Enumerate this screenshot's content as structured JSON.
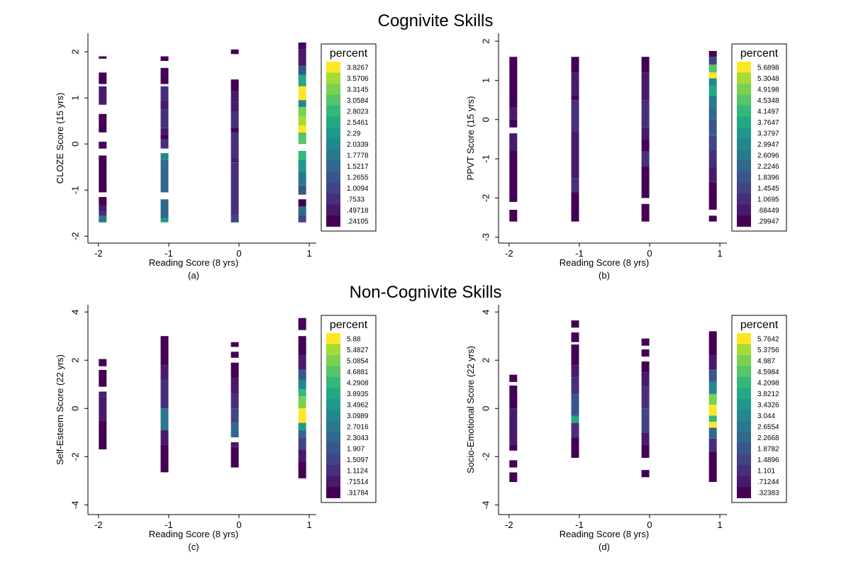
{
  "titles": {
    "top": "Cognivite Skills",
    "bottom": "Non-Cognivite Skills"
  },
  "chart_data": [
    {
      "type": "heatmap",
      "panel_label": "(a)",
      "xlabel": "Reading Score (8 yrs)",
      "ylabel": "CLOZE Score (15 yrs)",
      "xlim": [
        -2.15,
        1.1
      ],
      "ylim": [
        -2.15,
        2.4
      ],
      "xticks": [
        -2,
        -1,
        0,
        1
      ],
      "yticks": [
        -2,
        -1,
        0,
        1,
        2
      ],
      "legend_title": "percent",
      "legend_labels": [
        "3.8267",
        "3.5706",
        "3.3145",
        "3.0584",
        "2.8023",
        "2.5461",
        "2.29",
        "2.0339",
        "1.7778",
        "1.5217",
        "1.2655",
        "1.0094",
        ".7533",
        ".49718",
        ".24105"
      ],
      "columns": [
        {
          "x": -1.94,
          "cells": [
            [
              1.85,
              1.9,
              0
            ],
            [
              1.3,
              1.55,
              0
            ],
            [
              0.85,
              1.25,
              1
            ],
            [
              0.25,
              0.65,
              0
            ],
            [
              -0.1,
              0.05,
              0
            ],
            [
              -1.05,
              -0.25,
              0
            ],
            [
              -1.35,
              -1.15,
              0
            ],
            [
              -1.45,
              -1.35,
              1
            ],
            [
              -1.55,
              -1.45,
              2
            ],
            [
              -1.7,
              -1.55,
              6
            ]
          ]
        },
        {
          "x": -1.06,
          "cells": [
            [
              1.8,
              1.9,
              0
            ],
            [
              1.3,
              1.65,
              0
            ],
            [
              0.95,
              1.25,
              2
            ],
            [
              0.75,
              0.95,
              1
            ],
            [
              0.35,
              0.75,
              2
            ],
            [
              0.2,
              0.35,
              1
            ],
            [
              0.1,
              0.2,
              0
            ],
            [
              -0.1,
              0.1,
              2
            ],
            [
              -0.35,
              -0.2,
              7
            ],
            [
              -1.05,
              -0.35,
              5
            ],
            [
              -1.65,
              -1.2,
              5
            ],
            [
              -1.7,
              -1.6,
              8
            ]
          ]
        },
        {
          "x": -0.06,
          "cells": [
            [
              1.95,
              2.05,
              0
            ],
            [
              1.15,
              1.4,
              0
            ],
            [
              0.9,
              1.15,
              1
            ],
            [
              0.7,
              0.9,
              1
            ],
            [
              0.35,
              0.7,
              2
            ],
            [
              0.25,
              0.35,
              0
            ],
            [
              -0.3,
              0.25,
              2
            ],
            [
              -0.4,
              -0.3,
              1
            ],
            [
              -1.15,
              -0.4,
              2
            ],
            [
              -1.55,
              -1.15,
              2
            ],
            [
              -1.7,
              -1.55,
              3
            ]
          ]
        },
        {
          "x": 0.9,
          "cells": [
            [
              2.05,
              2.2,
              0
            ],
            [
              1.7,
              2.05,
              1
            ],
            [
              1.5,
              1.7,
              4
            ],
            [
              1.25,
              1.5,
              9
            ],
            [
              0.95,
              1.25,
              14
            ],
            [
              0.8,
              0.95,
              7
            ],
            [
              0.6,
              0.8,
              12
            ],
            [
              0.4,
              0.6,
              13
            ],
            [
              0.25,
              0.4,
              14
            ],
            [
              0.0,
              0.25,
              11
            ],
            [
              -0.35,
              -0.15,
              10
            ],
            [
              -0.6,
              -0.35,
              8
            ],
            [
              -0.9,
              -0.6,
              6
            ],
            [
              -1.1,
              -0.9,
              4
            ],
            [
              -1.35,
              -1.2,
              0
            ],
            [
              -1.55,
              -1.35,
              5
            ],
            [
              -1.7,
              -1.55,
              3
            ]
          ]
        }
      ]
    },
    {
      "type": "heatmap",
      "panel_label": "(b)",
      "xlabel": "Reading Score (8 yrs)",
      "ylabel": "PPVT Score (15 yrs)",
      "xlim": [
        -2.15,
        1.1
      ],
      "ylim": [
        -3.15,
        2.2
      ],
      "xticks": [
        -2,
        -1,
        0,
        1
      ],
      "yticks": [
        -3,
        -2,
        -1,
        0,
        1,
        2
      ],
      "legend_title": "percent",
      "legend_labels": [
        "5.6898",
        "5.3048",
        "4.9198",
        "4.5348",
        "4.1497",
        "3.7647",
        "3.3797",
        "2.9947",
        "2.6096",
        "2.2246",
        "1.8396",
        "1.4545",
        "1.0695",
        ".68449",
        ".29947"
      ],
      "columns": [
        {
          "x": -1.94,
          "cells": [
            [
              0.3,
              1.6,
              0
            ],
            [
              0.0,
              0.3,
              1
            ],
            [
              -0.2,
              0.0,
              0
            ],
            [
              -0.8,
              -0.35,
              1
            ],
            [
              -2.1,
              -0.8,
              0
            ],
            [
              -2.6,
              -2.3,
              0
            ]
          ]
        },
        {
          "x": -1.06,
          "cells": [
            [
              1.2,
              1.6,
              0
            ],
            [
              0.6,
              1.2,
              1
            ],
            [
              0.5,
              0.6,
              0
            ],
            [
              -0.3,
              0.5,
              2
            ],
            [
              -1.5,
              -0.3,
              1
            ],
            [
              -1.85,
              -1.5,
              2
            ],
            [
              -2.6,
              -1.85,
              0
            ]
          ]
        },
        {
          "x": -0.06,
          "cells": [
            [
              1.2,
              1.6,
              0
            ],
            [
              0.5,
              1.2,
              1
            ],
            [
              -0.2,
              0.5,
              2
            ],
            [
              -0.5,
              -0.2,
              1
            ],
            [
              -0.8,
              -0.5,
              0
            ],
            [
              -1.2,
              -0.8,
              2
            ],
            [
              -2.0,
              -1.2,
              0
            ],
            [
              -2.6,
              -2.15,
              0
            ]
          ]
        },
        {
          "x": 0.9,
          "cells": [
            [
              1.6,
              1.75,
              0
            ],
            [
              1.4,
              1.6,
              3
            ],
            [
              1.2,
              1.4,
              11
            ],
            [
              1.05,
              1.2,
              14
            ],
            [
              0.85,
              1.05,
              7
            ],
            [
              0.6,
              0.85,
              9
            ],
            [
              0.3,
              0.6,
              6
            ],
            [
              0.0,
              0.3,
              5
            ],
            [
              -0.4,
              0.0,
              4
            ],
            [
              -0.8,
              -0.4,
              3
            ],
            [
              -1.2,
              -0.8,
              2
            ],
            [
              -1.6,
              -1.2,
              1
            ],
            [
              -2.3,
              -1.6,
              0
            ],
            [
              -2.6,
              -2.45,
              0
            ]
          ]
        }
      ]
    },
    {
      "type": "heatmap",
      "panel_label": "(c)",
      "xlabel": "Reading Score (8 yrs)",
      "ylabel": "Self-Esteem Score (22 yrs)",
      "xlim": [
        -2.15,
        1.1
      ],
      "ylim": [
        -4.4,
        4.3
      ],
      "xticks": [
        -2,
        -1,
        0,
        1
      ],
      "yticks": [
        -4,
        -2,
        0,
        2,
        4
      ],
      "legend_title": "percent",
      "legend_labels": [
        "5.88",
        "5.4827",
        "5.0854",
        "4.6881",
        "4.2908",
        "3.8935",
        "3.4962",
        "3.0989",
        "2.7016",
        "2.3043",
        "1.907",
        "1.5097",
        "1.1124",
        ".71514",
        ".31784"
      ],
      "columns": [
        {
          "x": -1.94,
          "cells": [
            [
              1.75,
              2.05,
              0
            ],
            [
              0.9,
              1.6,
              0
            ],
            [
              0.5,
              0.7,
              1
            ],
            [
              -0.5,
              0.5,
              1
            ],
            [
              -1.7,
              -0.5,
              0
            ]
          ]
        },
        {
          "x": -1.06,
          "cells": [
            [
              1.8,
              3.0,
              0
            ],
            [
              1.2,
              1.8,
              1
            ],
            [
              0.0,
              1.2,
              2
            ],
            [
              -0.9,
              0.0,
              6
            ],
            [
              -1.5,
              -0.9,
              1
            ],
            [
              -2.65,
              -1.5,
              0
            ]
          ]
        },
        {
          "x": -0.06,
          "cells": [
            [
              2.55,
              2.75,
              0
            ],
            [
              2.1,
              2.35,
              0
            ],
            [
              1.25,
              1.9,
              0
            ],
            [
              0.6,
              1.25,
              1
            ],
            [
              0.0,
              0.6,
              2
            ],
            [
              -0.6,
              0.0,
              3
            ],
            [
              -1.2,
              -0.6,
              5
            ],
            [
              -1.6,
              -1.4,
              1
            ],
            [
              -2.45,
              -1.6,
              0
            ]
          ]
        },
        {
          "x": 0.9,
          "cells": [
            [
              3.25,
              3.75,
              0
            ],
            [
              2.2,
              3.0,
              0
            ],
            [
              1.6,
              2.2,
              1
            ],
            [
              1.2,
              1.6,
              4
            ],
            [
              0.8,
              1.2,
              7
            ],
            [
              0.5,
              0.8,
              10
            ],
            [
              0.0,
              0.5,
              12
            ],
            [
              -0.6,
              0.0,
              14
            ],
            [
              -0.9,
              -0.6,
              8
            ],
            [
              -1.2,
              -0.9,
              5
            ],
            [
              -1.7,
              -1.2,
              3
            ],
            [
              -2.2,
              -1.7,
              1
            ],
            [
              -2.9,
              -2.2,
              0
            ]
          ]
        }
      ]
    },
    {
      "type": "heatmap",
      "panel_label": "(d)",
      "xlabel": "Reading Score (8 yrs)",
      "ylabel": "Socio-Emotional Score (22 yrs)",
      "xlim": [
        -2.15,
        1.1
      ],
      "ylim": [
        -4.4,
        4.3
      ],
      "xticks": [
        -2,
        -1,
        0,
        1
      ],
      "yticks": [
        -4,
        -2,
        0,
        2,
        4
      ],
      "legend_title": "percent",
      "legend_labels": [
        "5.7642",
        "5.3756",
        "4.987",
        "4.5984",
        "4.2098",
        "3.8212",
        "3.4326",
        "3.044",
        "2.6554",
        "2.2668",
        "1.8782",
        "1.4896",
        "1.101",
        ".71244",
        ".32383"
      ],
      "columns": [
        {
          "x": -1.94,
          "cells": [
            [
              1.1,
              1.4,
              0
            ],
            [
              0.0,
              0.95,
              0
            ],
            [
              -1.5,
              0.0,
              1
            ],
            [
              -1.75,
              -1.5,
              0
            ],
            [
              -2.45,
              -2.15,
              0
            ],
            [
              -3.05,
              -2.65,
              0
            ]
          ]
        },
        {
          "x": -1.06,
          "cells": [
            [
              3.35,
              3.65,
              0
            ],
            [
              2.75,
              3.15,
              0
            ],
            [
              1.8,
              2.65,
              0
            ],
            [
              1.3,
              1.8,
              1
            ],
            [
              0.6,
              1.3,
              2
            ],
            [
              -0.3,
              0.6,
              4
            ],
            [
              -0.6,
              -0.3,
              9
            ],
            [
              -1.2,
              -0.6,
              2
            ],
            [
              -2.05,
              -1.2,
              0
            ]
          ]
        },
        {
          "x": -0.06,
          "cells": [
            [
              2.6,
              2.9,
              0
            ],
            [
              2.15,
              2.45,
              0
            ],
            [
              1.5,
              1.95,
              0
            ],
            [
              0.9,
              1.5,
              1
            ],
            [
              0.0,
              0.9,
              2
            ],
            [
              -1.0,
              0.0,
              3
            ],
            [
              -1.5,
              -1.0,
              1
            ],
            [
              -2.05,
              -1.5,
              0
            ],
            [
              -2.85,
              -2.55,
              0
            ]
          ]
        },
        {
          "x": 0.9,
          "cells": [
            [
              2.2,
              3.2,
              0
            ],
            [
              1.6,
              2.2,
              1
            ],
            [
              1.1,
              1.6,
              4
            ],
            [
              0.6,
              1.1,
              7
            ],
            [
              0.15,
              0.6,
              12
            ],
            [
              -0.3,
              0.15,
              14
            ],
            [
              -0.55,
              -0.3,
              10
            ],
            [
              -0.8,
              -0.55,
              14
            ],
            [
              -1.25,
              -0.8,
              5
            ],
            [
              -1.8,
              -1.25,
              2
            ],
            [
              -3.05,
              -1.8,
              0
            ]
          ]
        }
      ]
    }
  ],
  "palette": [
    "#440154",
    "#481a6c",
    "#472f7d",
    "#414487",
    "#39568c",
    "#31688e",
    "#2a788e",
    "#23888e",
    "#1f988b",
    "#22a884",
    "#35b779",
    "#54c568",
    "#7ad151",
    "#a5db36",
    "#fde725"
  ]
}
